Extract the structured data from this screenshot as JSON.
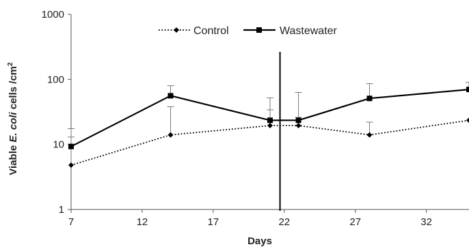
{
  "chart_data": {
    "type": "line",
    "xlabel": "Days",
    "ylabel": {
      "pre": "Viable ",
      "italic": "E. coli",
      "post": " cells /cm",
      "sup": "2"
    },
    "xlim": [
      7,
      35
    ],
    "xticks": [
      "7",
      "12",
      "17",
      "22",
      "27",
      "32"
    ],
    "ylim": [
      1,
      1000
    ],
    "yscale": "log",
    "yticks": [
      "1",
      "10",
      "100",
      "1000"
    ],
    "grid": false,
    "legend_position": "top-center",
    "vline_x": 21.7,
    "series": [
      {
        "name": "Control",
        "style": "dotted",
        "marker": "diamond",
        "color": "#000000",
        "x": [
          7,
          14,
          21,
          23,
          28,
          35
        ],
        "y": [
          4.8,
          14,
          19.5,
          19.5,
          14,
          23.5
        ],
        "err_upper": [
          13,
          38,
          34,
          26,
          22,
          null
        ]
      },
      {
        "name": "Wastewater",
        "style": "solid",
        "marker": "square",
        "color": "#000000",
        "x": [
          7,
          14,
          21,
          23,
          28,
          35
        ],
        "y": [
          9.3,
          56,
          23.5,
          23.5,
          51,
          70
        ],
        "err_upper": [
          17.5,
          80,
          52,
          63,
          86,
          90
        ]
      }
    ]
  }
}
